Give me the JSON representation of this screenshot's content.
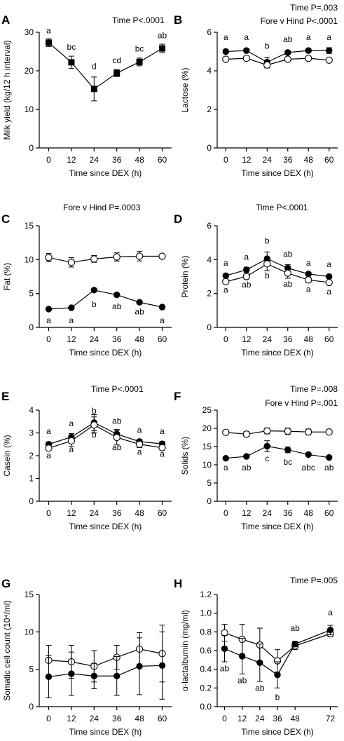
{
  "chart_data": [
    {
      "panel": "A",
      "type": "line",
      "notes": [
        "Time P<.0001"
      ],
      "xlabel": "Time since DEX (h)",
      "ylabel": "Milk yield (kg/12 h interval)",
      "x": [
        0,
        12,
        24,
        36,
        48,
        60
      ],
      "x_ticks": [
        "0",
        "12",
        "24",
        "36",
        "48",
        "60"
      ],
      "xlim": [
        -5,
        65
      ],
      "ylim": [
        0,
        30
      ],
      "y_ticks": [
        "0",
        "10",
        "20",
        "30"
      ],
      "series": [
        {
          "marker": "filled-square",
          "values": [
            27.3,
            22.2,
            15.3,
            19.4,
            22.3,
            25.8
          ],
          "errors": [
            1.0,
            1.6,
            3.1,
            0.9,
            1.0,
            1.1
          ]
        }
      ],
      "letters": [
        {
          "text": "a",
          "x": 0,
          "y": 29.7
        },
        {
          "text": "bc",
          "x": 12,
          "y": 25.5
        },
        {
          "text": "d",
          "x": 24,
          "y": 20.5
        },
        {
          "text": "cd",
          "x": 36,
          "y": 22.0
        },
        {
          "text": "bc",
          "x": 48,
          "y": 25.0
        },
        {
          "text": "ab",
          "x": 60,
          "y": 28.5
        }
      ]
    },
    {
      "panel": "B",
      "type": "line",
      "notes": [
        "Time P=.003",
        "Fore v Hind P<.0001"
      ],
      "xlabel": "Time since DEX (h)",
      "ylabel": "Lactose  (%)",
      "x": [
        0,
        12,
        24,
        36,
        48,
        60
      ],
      "x_ticks": [
        "0",
        "12",
        "24",
        "36",
        "48",
        "60"
      ],
      "xlim": [
        -5,
        65
      ],
      "ylim": [
        0,
        6
      ],
      "y_ticks": [
        "0",
        "2",
        "4",
        "6"
      ],
      "series": [
        {
          "marker": "filled-circle",
          "values": [
            5.0,
            5.05,
            4.45,
            4.95,
            5.05,
            5.05
          ],
          "errors": [
            0.1,
            0.1,
            0.25,
            0.1,
            0.1,
            0.15
          ]
        },
        {
          "marker": "open-circle",
          "values": [
            4.6,
            4.65,
            4.3,
            4.6,
            4.65,
            4.55
          ],
          "errors": [
            0.1,
            0.1,
            0.15,
            0.1,
            0.1,
            0.1
          ]
        }
      ],
      "letters": [
        {
          "text": "a",
          "x": 0,
          "y": 5.6
        },
        {
          "text": "a",
          "x": 12,
          "y": 5.6
        },
        {
          "text": "b",
          "x": 24,
          "y": 5.15
        },
        {
          "text": "ab",
          "x": 36,
          "y": 5.5
        },
        {
          "text": "a",
          "x": 48,
          "y": 5.6
        },
        {
          "text": "a",
          "x": 60,
          "y": 5.6
        }
      ]
    },
    {
      "panel": "C",
      "type": "line",
      "notes": [
        "Fore v Hind P=.0003"
      ],
      "xlabel": "Time since DEX (h)",
      "ylabel": "Fat (%)",
      "x": [
        0,
        12,
        24,
        36,
        48,
        60
      ],
      "x_ticks": [
        "0",
        "12",
        "24",
        "36",
        "48",
        "60"
      ],
      "xlim": [
        -5,
        65
      ],
      "ylim": [
        0,
        15
      ],
      "y_ticks": [
        "0",
        "5",
        "10",
        "15"
      ],
      "series": [
        {
          "marker": "open-circle",
          "values": [
            10.3,
            9.6,
            10.1,
            10.4,
            10.5,
            10.5
          ],
          "errors": [
            0.6,
            0.7,
            0.5,
            0.6,
            0.7,
            0.3
          ]
        },
        {
          "marker": "filled-circle",
          "values": [
            2.7,
            2.9,
            5.5,
            4.8,
            3.7,
            3.0
          ],
          "errors": [
            0.1,
            0.1,
            0.2,
            0.2,
            0.1,
            0.1
          ]
        }
      ],
      "letters": [
        {
          "text": "a",
          "x": 0,
          "y": 0.6
        },
        {
          "text": "a",
          "x": 12,
          "y": 0.6
        },
        {
          "text": "b",
          "x": 24,
          "y": 3.0
        },
        {
          "text": "ab",
          "x": 36,
          "y": 2.7
        },
        {
          "text": "ab",
          "x": 48,
          "y": 1.9
        },
        {
          "text": "a",
          "x": 60,
          "y": 0.6
        }
      ]
    },
    {
      "panel": "D",
      "type": "line",
      "notes": [
        "Time P<.0001"
      ],
      "xlabel": "Time since DEX (h)",
      "ylabel": "Protein  (%)",
      "x": [
        0,
        12,
        24,
        36,
        48,
        60
      ],
      "x_ticks": [
        "0",
        "12",
        "24",
        "36",
        "48",
        "60"
      ],
      "xlim": [
        -5,
        65
      ],
      "ylim": [
        0,
        6
      ],
      "y_ticks": [
        "0",
        "2",
        "4",
        "6"
      ],
      "series": [
        {
          "marker": "filled-circle",
          "values": [
            3.05,
            3.4,
            4.05,
            3.5,
            3.15,
            3.0
          ],
          "errors": [
            0.1,
            0.15,
            0.4,
            0.2,
            0.1,
            0.1
          ]
        },
        {
          "marker": "open-circle",
          "values": [
            2.7,
            3.0,
            3.75,
            3.2,
            2.8,
            2.65
          ],
          "errors": [
            0.1,
            0.15,
            0.4,
            0.3,
            0.15,
            0.1
          ]
        }
      ],
      "letters": [
        {
          "text": "a",
          "x": 0,
          "y": 3.65
        },
        {
          "text": "a",
          "x": 12,
          "y": 4.0
        },
        {
          "text": "b",
          "x": 24,
          "y": 4.95
        },
        {
          "text": "ab",
          "x": 36,
          "y": 4.15
        },
        {
          "text": "a",
          "x": 48,
          "y": 3.65
        },
        {
          "text": "a",
          "x": 60,
          "y": 3.55
        },
        {
          "text": "a",
          "x": 0,
          "y": 2.05
        },
        {
          "text": "ab",
          "x": 12,
          "y": 2.35
        },
        {
          "text": "b",
          "x": 24,
          "y": 2.9
        },
        {
          "text": "ab",
          "x": 36,
          "y": 2.4
        },
        {
          "text": "a",
          "x": 48,
          "y": 2.1
        },
        {
          "text": "a",
          "x": 60,
          "y": 1.95
        }
      ]
    },
    {
      "panel": "E",
      "type": "line",
      "notes": [
        "Time P<.0001"
      ],
      "xlabel": "Time since DEX (h)",
      "ylabel": "Casein  (%)",
      "x": [
        0,
        12,
        24,
        36,
        48,
        60
      ],
      "x_ticks": [
        "0",
        "12",
        "24",
        "36",
        "48",
        "60"
      ],
      "xlim": [
        -5,
        65
      ],
      "ylim": [
        0,
        4
      ],
      "y_ticks": [
        "0",
        "1",
        "2",
        "3",
        "4"
      ],
      "series": [
        {
          "marker": "filled-circle",
          "values": [
            2.5,
            2.82,
            3.45,
            2.95,
            2.62,
            2.52
          ],
          "errors": [
            0.1,
            0.15,
            0.35,
            0.2,
            0.1,
            0.1
          ]
        },
        {
          "marker": "open-circle",
          "values": [
            2.33,
            2.65,
            3.35,
            2.8,
            2.5,
            2.35
          ],
          "errors": [
            0.1,
            0.25,
            0.35,
            0.3,
            0.15,
            0.1
          ]
        }
      ],
      "letters": [
        {
          "text": "a",
          "x": 0,
          "y": 2.95
        },
        {
          "text": "a",
          "x": 12,
          "y": 3.3
        },
        {
          "text": "b",
          "x": 24,
          "y": 3.85
        },
        {
          "text": "ab",
          "x": 36,
          "y": 3.4
        },
        {
          "text": "a",
          "x": 48,
          "y": 3.0
        },
        {
          "text": "a",
          "x": 60,
          "y": 2.95
        },
        {
          "text": "a",
          "x": 0,
          "y": 1.9
        },
        {
          "text": "a",
          "x": 12,
          "y": 2.15
        },
        {
          "text": "b",
          "x": 24,
          "y": 2.8
        },
        {
          "text": "ab",
          "x": 36,
          "y": 2.25
        },
        {
          "text": "a",
          "x": 48,
          "y": 2.05
        },
        {
          "text": "a",
          "x": 60,
          "y": 1.95
        }
      ]
    },
    {
      "panel": "F",
      "type": "line",
      "notes": [
        "Time P=.008",
        "Fore v Hind P=.001"
      ],
      "xlabel": "Time since DEX (h)",
      "ylabel": "Solids  (%)",
      "x": [
        0,
        12,
        24,
        36,
        48,
        60
      ],
      "x_ticks": [
        "0",
        "12",
        "24",
        "36",
        "48",
        "60"
      ],
      "xlim": [
        -5,
        65
      ],
      "ylim": [
        0,
        25
      ],
      "y_ticks": [
        "0",
        "5",
        "10",
        "15",
        "20",
        "25"
      ],
      "series": [
        {
          "marker": "open-circle",
          "values": [
            18.9,
            18.4,
            19.3,
            19.2,
            19.0,
            19.0
          ],
          "errors": [
            0.6,
            0.7,
            0.8,
            0.9,
            0.8,
            0.4
          ]
        },
        {
          "marker": "filled-circle",
          "values": [
            11.8,
            12.3,
            15.1,
            14.1,
            12.8,
            12.0
          ],
          "errors": [
            0.3,
            0.3,
            1.5,
            0.8,
            0.3,
            0.3
          ]
        }
      ],
      "letters": [
        {
          "text": "a",
          "x": 0,
          "y": 8.5
        },
        {
          "text": "ab",
          "x": 12,
          "y": 8.5
        },
        {
          "text": "c",
          "x": 24,
          "y": 11.0
        },
        {
          "text": "bc",
          "x": 36,
          "y": 10.0
        },
        {
          "text": "abc",
          "x": 48,
          "y": 8.5
        },
        {
          "text": "ab",
          "x": 60,
          "y": 8.5
        }
      ]
    },
    {
      "panel": "G",
      "type": "line",
      "notes": [],
      "xlabel": "Time since DEX (h)",
      "ylabel": "Somatic cell count (10⁴/ml)",
      "x": [
        0,
        12,
        24,
        36,
        48,
        60
      ],
      "x_ticks": [
        "0",
        "12",
        "24",
        "36",
        "48",
        "60"
      ],
      "xlim": [
        -5,
        65
      ],
      "ylim": [
        0,
        15
      ],
      "y_ticks": [
        "0",
        "5",
        "10",
        "15"
      ],
      "series": [
        {
          "marker": "open-circle",
          "values": [
            6.2,
            6.0,
            5.4,
            6.6,
            7.7,
            7.1
          ],
          "errors": [
            2.0,
            2.2,
            2.1,
            1.6,
            2.2,
            3.8
          ]
        },
        {
          "marker": "filled-circle",
          "values": [
            4.0,
            4.4,
            4.1,
            4.1,
            5.4,
            5.5
          ],
          "errors": [
            2.8,
            2.9,
            1.7,
            2.6,
            3.8,
            4.5
          ]
        }
      ],
      "letters": []
    },
    {
      "panel": "H",
      "type": "line",
      "notes": [
        "Time P=.005"
      ],
      "xlabel": "Time since DEX (h)",
      "ylabel": "α-lactalbumin (mg/ml)",
      "x": [
        0,
        12,
        24,
        36,
        48,
        72
      ],
      "x_ticks": [
        "0",
        "12",
        "24",
        "36",
        "48",
        "72"
      ],
      "xlim": [
        -5,
        77
      ],
      "ylim": [
        0,
        1.2
      ],
      "y_ticks": [
        "0.0",
        "0.2",
        "0.4",
        "0.6",
        "0.8",
        "1.0",
        "1.2"
      ],
      "series": [
        {
          "marker": "open-circle",
          "values": [
            0.79,
            0.72,
            0.66,
            0.49,
            0.65,
            0.78
          ],
          "errors": [
            0.09,
            0.16,
            0.18,
            0.12,
            0.04,
            0.03
          ]
        },
        {
          "marker": "filled-circle",
          "values": [
            0.62,
            0.54,
            0.47,
            0.34,
            0.67,
            0.82
          ],
          "errors": [
            0.14,
            0.19,
            0.2,
            0.14,
            0.03,
            0.05
          ]
        }
      ],
      "letters": [
        {
          "text": "ab",
          "x": 0,
          "y": 0.38
        },
        {
          "text": "ab",
          "x": 12,
          "y": 0.25
        },
        {
          "text": "ab",
          "x": 24,
          "y": 0.17
        },
        {
          "text": "b",
          "x": 36,
          "y": 0.07
        },
        {
          "text": "ab",
          "x": 48,
          "y": 0.81
        },
        {
          "text": "a",
          "x": 72,
          "y": 0.98
        }
      ]
    }
  ]
}
